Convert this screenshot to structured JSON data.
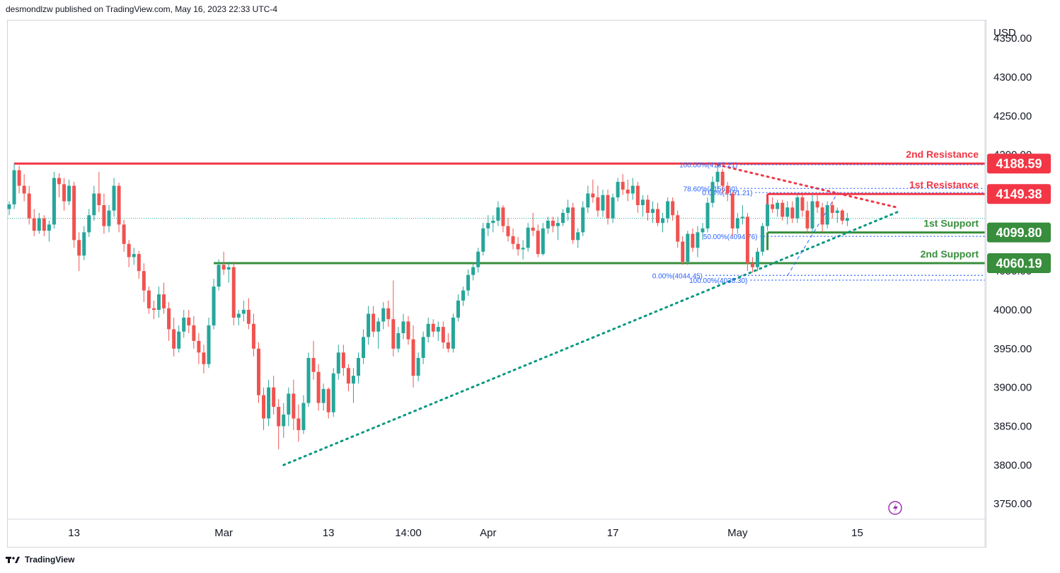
{
  "header": {
    "publish_text": "desmondlzw published on TradingView.com, May 16, 2023 22:33 UTC-4"
  },
  "footer": {
    "brand": "TradingView",
    "logo_icon": "tradingview-logo-icon"
  },
  "chart_data": {
    "type": "candlestick",
    "currency": "USD",
    "y_ticks": [
      4350,
      4300,
      4250,
      4200,
      4150,
      4100,
      4050,
      4000,
      3950,
      3900,
      3850,
      3800,
      3750
    ],
    "y_tick_labels": [
      "4350.00",
      "4300.00",
      "4250.00",
      "4200.00",
      "4150.00",
      "4100.00",
      "4050.00",
      "4000.00",
      "3950.00",
      "3900.00",
      "3850.00",
      "3800.00",
      "3750.00"
    ],
    "ylim": [
      3731,
      4373
    ],
    "x_tick_labels": [
      "13",
      "Mar",
      "13",
      "14:00",
      "Apr",
      "17",
      "May",
      "15"
    ],
    "x_tick_bar_index": [
      13,
      43,
      64,
      80,
      96,
      121,
      146,
      170
    ],
    "last_price": 4118,
    "colors": {
      "up": "#26a69a",
      "down": "#ef5350",
      "resistance": "#f23645",
      "support": "#388e3c",
      "trendline": "#089981",
      "fib": "#2962ff",
      "grid": "#d1d4dc"
    },
    "candles": [
      {
        "o": 4130,
        "h": 4140,
        "l": 4122,
        "c": 4136
      },
      {
        "o": 4136,
        "h": 4189,
        "l": 4130,
        "c": 4180
      },
      {
        "o": 4180,
        "h": 4186,
        "l": 4150,
        "c": 4160
      },
      {
        "o": 4160,
        "h": 4175,
        "l": 4140,
        "c": 4150
      },
      {
        "o": 4150,
        "h": 4160,
        "l": 4110,
        "c": 4118
      },
      {
        "o": 4118,
        "h": 4130,
        "l": 4095,
        "c": 4102
      },
      {
        "o": 4102,
        "h": 4125,
        "l": 4098,
        "c": 4118
      },
      {
        "o": 4118,
        "h": 4122,
        "l": 4095,
        "c": 4102
      },
      {
        "o": 4102,
        "h": 4115,
        "l": 4088,
        "c": 4110
      },
      {
        "o": 4110,
        "h": 4178,
        "l": 4105,
        "c": 4170
      },
      {
        "o": 4170,
        "h": 4176,
        "l": 4145,
        "c": 4162
      },
      {
        "o": 4162,
        "h": 4170,
        "l": 4128,
        "c": 4140
      },
      {
        "o": 4140,
        "h": 4168,
        "l": 4135,
        "c": 4160
      },
      {
        "o": 4160,
        "h": 4165,
        "l": 4080,
        "c": 4090
      },
      {
        "o": 4090,
        "h": 4100,
        "l": 4050,
        "c": 4070
      },
      {
        "o": 4070,
        "h": 4108,
        "l": 4064,
        "c": 4100
      },
      {
        "o": 4100,
        "h": 4130,
        "l": 4094,
        "c": 4122
      },
      {
        "o": 4122,
        "h": 4160,
        "l": 4115,
        "c": 4150
      },
      {
        "o": 4150,
        "h": 4178,
        "l": 4126,
        "c": 4135
      },
      {
        "o": 4135,
        "h": 4150,
        "l": 4098,
        "c": 4108
      },
      {
        "o": 4108,
        "h": 4135,
        "l": 4100,
        "c": 4128
      },
      {
        "o": 4128,
        "h": 4170,
        "l": 4120,
        "c": 4160
      },
      {
        "o": 4160,
        "h": 4164,
        "l": 4100,
        "c": 4110
      },
      {
        "o": 4110,
        "h": 4116,
        "l": 4075,
        "c": 4085
      },
      {
        "o": 4085,
        "h": 4090,
        "l": 4055,
        "c": 4068
      },
      {
        "o": 4068,
        "h": 4080,
        "l": 4058,
        "c": 4072
      },
      {
        "o": 4072,
        "h": 4076,
        "l": 4040,
        "c": 4050
      },
      {
        "o": 4050,
        "h": 4060,
        "l": 4010,
        "c": 4025
      },
      {
        "o": 4025,
        "h": 4030,
        "l": 3995,
        "c": 4002
      },
      {
        "o": 4002,
        "h": 4012,
        "l": 3988,
        "c": 4000
      },
      {
        "o": 4000,
        "h": 4030,
        "l": 3990,
        "c": 4020
      },
      {
        "o": 4020,
        "h": 4035,
        "l": 3995,
        "c": 4002
      },
      {
        "o": 4002,
        "h": 4010,
        "l": 3960,
        "c": 3975
      },
      {
        "o": 3975,
        "h": 3990,
        "l": 3940,
        "c": 3950
      },
      {
        "o": 3950,
        "h": 3980,
        "l": 3945,
        "c": 3972
      },
      {
        "o": 3972,
        "h": 4000,
        "l": 3964,
        "c": 3990
      },
      {
        "o": 3990,
        "h": 4000,
        "l": 3970,
        "c": 3980
      },
      {
        "o": 3980,
        "h": 3992,
        "l": 3950,
        "c": 3960
      },
      {
        "o": 3960,
        "h": 3970,
        "l": 3930,
        "c": 3945
      },
      {
        "o": 3945,
        "h": 3955,
        "l": 3918,
        "c": 3930
      },
      {
        "o": 3930,
        "h": 3990,
        "l": 3925,
        "c": 3980
      },
      {
        "o": 3980,
        "h": 4040,
        "l": 3975,
        "c": 4030
      },
      {
        "o": 4030,
        "h": 4065,
        "l": 4025,
        "c": 4058
      },
      {
        "o": 4058,
        "h": 4075,
        "l": 4045,
        "c": 4052
      },
      {
        "o": 4052,
        "h": 4062,
        "l": 4035,
        "c": 4055
      },
      {
        "o": 4055,
        "h": 4062,
        "l": 3980,
        "c": 3990
      },
      {
        "o": 3990,
        "h": 4000,
        "l": 3980,
        "c": 3995
      },
      {
        "o": 3995,
        "h": 4012,
        "l": 3985,
        "c": 4000
      },
      {
        "o": 4000,
        "h": 4015,
        "l": 3975,
        "c": 3982
      },
      {
        "o": 3982,
        "h": 3995,
        "l": 3940,
        "c": 3950
      },
      {
        "o": 3950,
        "h": 3958,
        "l": 3880,
        "c": 3890
      },
      {
        "o": 3890,
        "h": 3900,
        "l": 3845,
        "c": 3860
      },
      {
        "o": 3860,
        "h": 3910,
        "l": 3850,
        "c": 3900
      },
      {
        "o": 3900,
        "h": 3915,
        "l": 3865,
        "c": 3875
      },
      {
        "o": 3875,
        "h": 3885,
        "l": 3820,
        "c": 3850
      },
      {
        "o": 3850,
        "h": 3880,
        "l": 3835,
        "c": 3865
      },
      {
        "o": 3865,
        "h": 3900,
        "l": 3850,
        "c": 3892
      },
      {
        "o": 3892,
        "h": 3910,
        "l": 3845,
        "c": 3860
      },
      {
        "o": 3860,
        "h": 3878,
        "l": 3830,
        "c": 3845
      },
      {
        "o": 3845,
        "h": 3890,
        "l": 3840,
        "c": 3880
      },
      {
        "o": 3880,
        "h": 3945,
        "l": 3875,
        "c": 3938
      },
      {
        "o": 3938,
        "h": 3960,
        "l": 3910,
        "c": 3920
      },
      {
        "o": 3920,
        "h": 3930,
        "l": 3870,
        "c": 3880
      },
      {
        "o": 3880,
        "h": 3905,
        "l": 3870,
        "c": 3898
      },
      {
        "o": 3898,
        "h": 3900,
        "l": 3860,
        "c": 3868
      },
      {
        "o": 3868,
        "h": 3925,
        "l": 3862,
        "c": 3918
      },
      {
        "o": 3918,
        "h": 3955,
        "l": 3910,
        "c": 3945
      },
      {
        "o": 3945,
        "h": 3955,
        "l": 3915,
        "c": 3925
      },
      {
        "o": 3925,
        "h": 3930,
        "l": 3895,
        "c": 3905
      },
      {
        "o": 3905,
        "h": 3925,
        "l": 3880,
        "c": 3915
      },
      {
        "o": 3915,
        "h": 3945,
        "l": 3905,
        "c": 3938
      },
      {
        "o": 3938,
        "h": 3975,
        "l": 3930,
        "c": 3965
      },
      {
        "o": 3965,
        "h": 4005,
        "l": 3955,
        "c": 3995
      },
      {
        "o": 3995,
        "h": 4005,
        "l": 3965,
        "c": 3972
      },
      {
        "o": 3972,
        "h": 3990,
        "l": 3950,
        "c": 3985
      },
      {
        "o": 3985,
        "h": 4010,
        "l": 3975,
        "c": 4002
      },
      {
        "o": 4002,
        "h": 4012,
        "l": 3978,
        "c": 3988
      },
      {
        "o": 3988,
        "h": 4038,
        "l": 3940,
        "c": 3950
      },
      {
        "o": 3950,
        "h": 3978,
        "l": 3945,
        "c": 3970
      },
      {
        "o": 3970,
        "h": 3995,
        "l": 3962,
        "c": 3985
      },
      {
        "o": 3985,
        "h": 3992,
        "l": 3955,
        "c": 3962
      },
      {
        "o": 3962,
        "h": 3980,
        "l": 3900,
        "c": 3915
      },
      {
        "o": 3915,
        "h": 3945,
        "l": 3908,
        "c": 3938
      },
      {
        "o": 3938,
        "h": 3972,
        "l": 3930,
        "c": 3965
      },
      {
        "o": 3965,
        "h": 3990,
        "l": 3958,
        "c": 3982
      },
      {
        "o": 3982,
        "h": 3988,
        "l": 3965,
        "c": 3972
      },
      {
        "o": 3972,
        "h": 3985,
        "l": 3960,
        "c": 3978
      },
      {
        "o": 3978,
        "h": 3985,
        "l": 3950,
        "c": 3958
      },
      {
        "o": 3958,
        "h": 3970,
        "l": 3945,
        "c": 3950
      },
      {
        "o": 3950,
        "h": 3995,
        "l": 3945,
        "c": 3990
      },
      {
        "o": 3990,
        "h": 4020,
        "l": 3985,
        "c": 4012
      },
      {
        "o": 4012,
        "h": 4030,
        "l": 4005,
        "c": 4025
      },
      {
        "o": 4025,
        "h": 4052,
        "l": 4018,
        "c": 4045
      },
      {
        "o": 4045,
        "h": 4060,
        "l": 4038,
        "c": 4055
      },
      {
        "o": 4055,
        "h": 4080,
        "l": 4048,
        "c": 4075
      },
      {
        "o": 4075,
        "h": 4112,
        "l": 4070,
        "c": 4105
      },
      {
        "o": 4105,
        "h": 4122,
        "l": 4095,
        "c": 4112
      },
      {
        "o": 4112,
        "h": 4122,
        "l": 4100,
        "c": 4115
      },
      {
        "o": 4115,
        "h": 4140,
        "l": 4108,
        "c": 4132
      },
      {
        "o": 4132,
        "h": 4135,
        "l": 4100,
        "c": 4108
      },
      {
        "o": 4108,
        "h": 4118,
        "l": 4088,
        "c": 4095
      },
      {
        "o": 4095,
        "h": 4105,
        "l": 4078,
        "c": 4085
      },
      {
        "o": 4085,
        "h": 4094,
        "l": 4070,
        "c": 4078
      },
      {
        "o": 4078,
        "h": 4090,
        "l": 4065,
        "c": 4080
      },
      {
        "o": 4080,
        "h": 4112,
        "l": 4075,
        "c": 4106
      },
      {
        "o": 4106,
        "h": 4125,
        "l": 4095,
        "c": 4102
      },
      {
        "o": 4102,
        "h": 4110,
        "l": 4068,
        "c": 4072
      },
      {
        "o": 4072,
        "h": 4112,
        "l": 4070,
        "c": 4105
      },
      {
        "o": 4105,
        "h": 4120,
        "l": 4098,
        "c": 4115
      },
      {
        "o": 4115,
        "h": 4120,
        "l": 4100,
        "c": 4108
      },
      {
        "o": 4108,
        "h": 4120,
        "l": 4090,
        "c": 4112
      },
      {
        "o": 4112,
        "h": 4130,
        "l": 4108,
        "c": 4125
      },
      {
        "o": 4125,
        "h": 4142,
        "l": 4115,
        "c": 4132
      },
      {
        "o": 4132,
        "h": 4138,
        "l": 4085,
        "c": 4090
      },
      {
        "o": 4090,
        "h": 4105,
        "l": 4080,
        "c": 4100
      },
      {
        "o": 4100,
        "h": 4140,
        "l": 4095,
        "c": 4132
      },
      {
        "o": 4132,
        "h": 4160,
        "l": 4125,
        "c": 4150
      },
      {
        "o": 4150,
        "h": 4168,
        "l": 4138,
        "c": 4145
      },
      {
        "o": 4145,
        "h": 4160,
        "l": 4120,
        "c": 4128
      },
      {
        "o": 4128,
        "h": 4155,
        "l": 4120,
        "c": 4148
      },
      {
        "o": 4148,
        "h": 4155,
        "l": 4110,
        "c": 4118
      },
      {
        "o": 4118,
        "h": 4150,
        "l": 4112,
        "c": 4145
      },
      {
        "o": 4145,
        "h": 4170,
        "l": 4140,
        "c": 4165
      },
      {
        "o": 4165,
        "h": 4175,
        "l": 4148,
        "c": 4155
      },
      {
        "o": 4155,
        "h": 4168,
        "l": 4140,
        "c": 4150
      },
      {
        "o": 4150,
        "h": 4170,
        "l": 4142,
        "c": 4160
      },
      {
        "o": 4160,
        "h": 4165,
        "l": 4125,
        "c": 4135
      },
      {
        "o": 4135,
        "h": 4148,
        "l": 4120,
        "c": 4142
      },
      {
        "o": 4142,
        "h": 4148,
        "l": 4115,
        "c": 4125
      },
      {
        "o": 4125,
        "h": 4140,
        "l": 4112,
        "c": 4130
      },
      {
        "o": 4130,
        "h": 4138,
        "l": 4108,
        "c": 4112
      },
      {
        "o": 4112,
        "h": 4125,
        "l": 4100,
        "c": 4118
      },
      {
        "o": 4118,
        "h": 4145,
        "l": 4112,
        "c": 4140
      },
      {
        "o": 4140,
        "h": 4145,
        "l": 4115,
        "c": 4122
      },
      {
        "o": 4122,
        "h": 4128,
        "l": 4080,
        "c": 4088
      },
      {
        "o": 4088,
        "h": 4095,
        "l": 4058,
        "c": 4062
      },
      {
        "o": 4062,
        "h": 4102,
        "l": 4058,
        "c": 4098
      },
      {
        "o": 4098,
        "h": 4105,
        "l": 4075,
        "c": 4080
      },
      {
        "o": 4080,
        "h": 4108,
        "l": 4068,
        "c": 4100
      },
      {
        "o": 4100,
        "h": 4112,
        "l": 4090,
        "c": 4105
      },
      {
        "o": 4105,
        "h": 4145,
        "l": 4100,
        "c": 4138
      },
      {
        "o": 4138,
        "h": 4172,
        "l": 4132,
        "c": 4165
      },
      {
        "o": 4165,
        "h": 4187,
        "l": 4155,
        "c": 4178
      },
      {
        "o": 4178,
        "h": 4182,
        "l": 4150,
        "c": 4160
      },
      {
        "o": 4160,
        "h": 4165,
        "l": 4140,
        "c": 4150
      },
      {
        "o": 4150,
        "h": 4152,
        "l": 4095,
        "c": 4105
      },
      {
        "o": 4105,
        "h": 4125,
        "l": 4098,
        "c": 4118
      },
      {
        "o": 4118,
        "h": 4135,
        "l": 4110,
        "c": 4120
      },
      {
        "o": 4120,
        "h": 4125,
        "l": 4050,
        "c": 4060
      },
      {
        "o": 4060,
        "h": 4068,
        "l": 4048,
        "c": 4055
      },
      {
        "o": 4055,
        "h": 4080,
        "l": 4050,
        "c": 4075
      },
      {
        "o": 4075,
        "h": 4112,
        "l": 4070,
        "c": 4108
      },
      {
        "o": 4108,
        "h": 4140,
        "l": 4102,
        "c": 4136
      },
      {
        "o": 4136,
        "h": 4145,
        "l": 4125,
        "c": 4130
      },
      {
        "o": 4130,
        "h": 4142,
        "l": 4120,
        "c": 4138
      },
      {
        "o": 4138,
        "h": 4142,
        "l": 4115,
        "c": 4120
      },
      {
        "o": 4120,
        "h": 4140,
        "l": 4110,
        "c": 4132
      },
      {
        "o": 4132,
        "h": 4140,
        "l": 4112,
        "c": 4118
      },
      {
        "o": 4118,
        "h": 4150,
        "l": 4112,
        "c": 4145
      },
      {
        "o": 4145,
        "h": 4150,
        "l": 4120,
        "c": 4128
      },
      {
        "o": 4128,
        "h": 4140,
        "l": 4098,
        "c": 4105
      },
      {
        "o": 4105,
        "h": 4148,
        "l": 4100,
        "c": 4140
      },
      {
        "o": 4140,
        "h": 4150,
        "l": 4125,
        "c": 4132
      },
      {
        "o": 4132,
        "h": 4138,
        "l": 4100,
        "c": 4110
      },
      {
        "o": 4110,
        "h": 4140,
        "l": 4105,
        "c": 4135
      },
      {
        "o": 4135,
        "h": 4140,
        "l": 4118,
        "c": 4125
      },
      {
        "o": 4125,
        "h": 4132,
        "l": 4112,
        "c": 4128
      },
      {
        "o": 4128,
        "h": 4130,
        "l": 4110,
        "c": 4115
      },
      {
        "o": 4115,
        "h": 4125,
        "l": 4108,
        "c": 4118
      }
    ],
    "horizontal_levels": [
      {
        "name": "2nd Resistance",
        "value": 4188.59,
        "label": "4188.59",
        "role": "resistance",
        "from_bar": 1
      },
      {
        "name": "1st Resistance",
        "value": 4149.38,
        "label": "4149.38",
        "role": "resistance",
        "from_bar": 152
      },
      {
        "name": "1st Support",
        "value": 4099.8,
        "label": "4099.80",
        "role": "support",
        "from_bar": 152
      },
      {
        "name": "2nd Support",
        "value": 4060.19,
        "label": "4060.19",
        "role": "support",
        "from_bar": 41
      }
    ],
    "fibonacci_labels": [
      {
        "text": "100.00%(4187.21)",
        "value": 4187.21
      },
      {
        "text": "78.60%(4156.60)",
        "value": 4156.6
      },
      {
        "text": "0.00%(4151.21)",
        "value": 4151.21
      },
      {
        "text": "50.00%(4094.76)",
        "value": 4094.76
      },
      {
        "text": "0.00%(4044.45)",
        "value": 4044.45
      },
      {
        "text": "100.00%(4038.30)",
        "value": 4038.3
      }
    ],
    "trendlines": [
      {
        "role": "support",
        "from": {
          "bar": 55,
          "value": 3800
        },
        "to": {
          "bar": 178,
          "value": 4126
        }
      },
      {
        "role": "resistance",
        "from": {
          "bar": 142,
          "value": 4187
        },
        "to": {
          "bar": 178,
          "value": 4132
        }
      }
    ],
    "grid": false,
    "legend": "none"
  }
}
